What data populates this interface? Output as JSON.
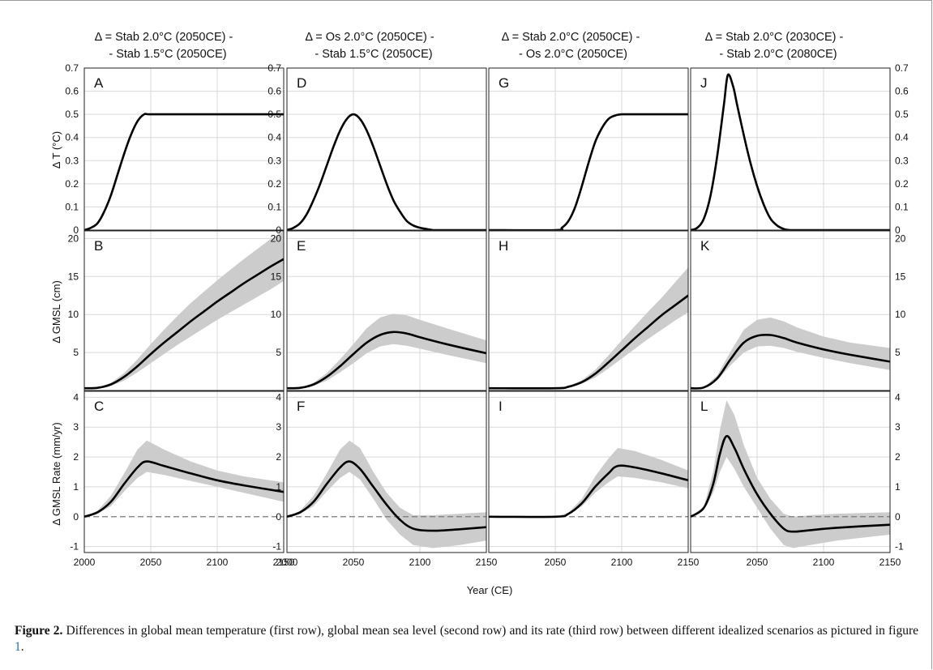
{
  "figure": {
    "x_axis_label": "Year (CE)",
    "row_labels": [
      "Δ T (°C)",
      "Δ GMSL (cm)",
      "Δ GMSL Rate (mm/yr)"
    ],
    "columns": [
      {
        "title_line1": "Δ = Stab 2.0°C (2050CE) -",
        "title_line2": "- Stab 1.5°C (2050CE)"
      },
      {
        "title_line1": "Δ = Os 2.0°C (2050CE) -",
        "title_line2": "- Stab 1.5°C (2050CE)"
      },
      {
        "title_line1": "Δ = Stab 2.0°C (2050CE) -",
        "title_line2": "- Os 2.0°C (2050CE)"
      },
      {
        "title_line1": "Δ = Stab 2.0°C (2030CE) -",
        "title_line2": "- Stab 2.0°C (2080CE)"
      }
    ],
    "colors": {
      "line": "#000000",
      "band": "#cccccc",
      "grid": "#d9d9d9",
      "zero_line": "#7a7a7a",
      "caption_link": "#1f6fb0"
    }
  },
  "caption": {
    "label": "Figure 2.",
    "text": " Differences in global mean temperature (first row), global mean sea level (second row) and its rate (third row) between different idealized scenarios as pictured in figure ",
    "link": "1",
    "end": "."
  },
  "chart_data": [
    {
      "panel": "A",
      "type": "line",
      "xlim": [
        2000,
        2150
      ],
      "ylim": [
        0,
        0.7
      ],
      "xticks": [
        "2000",
        "2050",
        "2100",
        "2150"
      ],
      "yticks": [
        "0",
        "0.1",
        "0.2",
        "0.3",
        "0.4",
        "0.5",
        "0.6",
        "0.7"
      ],
      "grid": true,
      "x": [
        2000,
        2005,
        2010,
        2015,
        2020,
        2025,
        2030,
        2035,
        2040,
        2045,
        2050,
        2075,
        2100,
        2125,
        2150
      ],
      "y": [
        0,
        0.01,
        0.03,
        0.08,
        0.15,
        0.24,
        0.33,
        0.41,
        0.47,
        0.5,
        0.5,
        0.5,
        0.5,
        0.5,
        0.5
      ]
    },
    {
      "panel": "B",
      "type": "area",
      "xlim": [
        2000,
        2150
      ],
      "ylim": [
        0,
        21
      ],
      "xticks": [
        "2000",
        "2050",
        "2100",
        "2150"
      ],
      "yticks": [
        "5",
        "10",
        "15",
        "20"
      ],
      "grid": true,
      "x": [
        2000,
        2010,
        2020,
        2030,
        2040,
        2050,
        2060,
        2070,
        2080,
        2090,
        2100,
        2110,
        2120,
        2130,
        2140,
        2150
      ],
      "y": [
        0.3,
        0.35,
        0.8,
        1.8,
        3.2,
        4.8,
        6.3,
        7.7,
        9.1,
        10.4,
        11.7,
        12.9,
        14.1,
        15.2,
        16.3,
        17.3
      ],
      "lower": [
        0.3,
        0.33,
        0.6,
        1.3,
        2.4,
        3.6,
        4.8,
        6.0,
        7.1,
        8.2,
        9.3,
        10.3,
        11.3,
        12.3,
        13.3,
        14.4
      ],
      "upper": [
        0.3,
        0.38,
        1.0,
        2.3,
        4.1,
        6.1,
        8.0,
        9.8,
        11.5,
        13.0,
        14.5,
        15.9,
        17.3,
        18.6,
        19.9,
        21.0
      ]
    },
    {
      "panel": "C",
      "type": "area",
      "xlim": [
        2000,
        2150
      ],
      "ylim": [
        -1.2,
        4.2
      ],
      "xticks": [
        "2000",
        "2050",
        "2100",
        "2150"
      ],
      "yticks": [
        "-1",
        "0",
        "1",
        "2",
        "3",
        "4"
      ],
      "grid": true,
      "zero_line": true,
      "x": [
        2000,
        2010,
        2020,
        2030,
        2040,
        2047,
        2060,
        2080,
        2100,
        2120,
        2150
      ],
      "y": [
        0,
        0.15,
        0.5,
        1.1,
        1.65,
        1.85,
        1.7,
        1.45,
        1.22,
        1.05,
        0.83
      ],
      "lower": [
        0,
        0.1,
        0.35,
        0.85,
        1.3,
        1.5,
        1.4,
        1.2,
        1.0,
        0.8,
        0.5
      ],
      "upper": [
        0,
        0.2,
        0.7,
        1.45,
        2.25,
        2.55,
        2.25,
        1.85,
        1.55,
        1.35,
        1.15
      ]
    },
    {
      "panel": "D",
      "type": "line",
      "xlim": [
        2000,
        2150
      ],
      "ylim": [
        0,
        0.7
      ],
      "xticks": [
        "2000",
        "2050",
        "2100",
        "2150"
      ],
      "yticks": [
        "0",
        "0.1",
        "0.2",
        "0.3",
        "0.4",
        "0.5",
        "0.6",
        "0.7"
      ],
      "grid": true,
      "x": [
        2000,
        2005,
        2010,
        2015,
        2020,
        2025,
        2030,
        2035,
        2040,
        2045,
        2050,
        2055,
        2060,
        2065,
        2070,
        2075,
        2080,
        2085,
        2090,
        2095,
        2100,
        2105,
        2110,
        2120,
        2150
      ],
      "y": [
        0,
        0.01,
        0.03,
        0.07,
        0.13,
        0.2,
        0.28,
        0.36,
        0.43,
        0.48,
        0.5,
        0.48,
        0.43,
        0.36,
        0.28,
        0.2,
        0.13,
        0.08,
        0.04,
        0.02,
        0.01,
        0.005,
        0,
        0,
        0
      ]
    },
    {
      "panel": "E",
      "type": "area",
      "xlim": [
        2000,
        2150
      ],
      "ylim": [
        0,
        21
      ],
      "xticks": [
        "2000",
        "2050",
        "2100",
        "2150"
      ],
      "yticks": [
        "5",
        "10",
        "15",
        "20"
      ],
      "grid": true,
      "x": [
        2000,
        2010,
        2020,
        2030,
        2040,
        2050,
        2060,
        2070,
        2080,
        2090,
        2100,
        2120,
        2150
      ],
      "y": [
        0.3,
        0.35,
        0.8,
        1.8,
        3.2,
        4.8,
        6.3,
        7.3,
        7.7,
        7.5,
        7.0,
        6.1,
        4.9
      ],
      "lower": [
        0.3,
        0.33,
        0.6,
        1.3,
        2.4,
        3.6,
        4.9,
        5.8,
        6.1,
        5.9,
        5.5,
        4.7,
        3.6
      ],
      "upper": [
        0.3,
        0.38,
        1.0,
        2.3,
        4.1,
        6.1,
        8.2,
        9.6,
        10.1,
        9.9,
        9.3,
        8.2,
        6.6
      ]
    },
    {
      "panel": "F",
      "type": "area",
      "xlim": [
        2000,
        2150
      ],
      "ylim": [
        -1.2,
        4.2
      ],
      "xticks": [
        "2000",
        "2050",
        "2100",
        "2150"
      ],
      "yticks": [
        "-1",
        "0",
        "1",
        "2",
        "3",
        "4"
      ],
      "grid": true,
      "zero_line": true,
      "x": [
        2000,
        2010,
        2020,
        2030,
        2040,
        2047,
        2055,
        2065,
        2075,
        2085,
        2095,
        2110,
        2130,
        2150
      ],
      "y": [
        0,
        0.15,
        0.5,
        1.1,
        1.65,
        1.85,
        1.6,
        1.0,
        0.4,
        -0.1,
        -0.4,
        -0.47,
        -0.42,
        -0.35
      ],
      "lower": [
        0,
        0.1,
        0.35,
        0.85,
        1.3,
        1.5,
        1.25,
        0.6,
        -0.1,
        -0.6,
        -0.95,
        -1.05,
        -0.95,
        -0.8
      ],
      "upper": [
        0,
        0.2,
        0.7,
        1.45,
        2.25,
        2.55,
        2.3,
        1.5,
        0.8,
        0.3,
        0.05,
        0.05,
        0.1,
        0.15
      ]
    },
    {
      "panel": "G",
      "type": "line",
      "xlim": [
        2000,
        2150
      ],
      "ylim": [
        0,
        0.7
      ],
      "xticks": [
        "2050",
        "2100",
        "2150"
      ],
      "yticks": [],
      "grid": true,
      "x": [
        2000,
        2050,
        2055,
        2060,
        2065,
        2070,
        2075,
        2080,
        2085,
        2090,
        2095,
        2100,
        2110,
        2150
      ],
      "y": [
        0,
        0,
        0.01,
        0.04,
        0.1,
        0.19,
        0.29,
        0.38,
        0.44,
        0.48,
        0.495,
        0.5,
        0.5,
        0.5
      ]
    },
    {
      "panel": "H",
      "type": "area",
      "xlim": [
        2000,
        2150
      ],
      "ylim": [
        0,
        21
      ],
      "xticks": [
        "2050",
        "2100",
        "2150"
      ],
      "yticks": [],
      "grid": true,
      "x": [
        2000,
        2050,
        2060,
        2070,
        2080,
        2090,
        2100,
        2110,
        2120,
        2130,
        2140,
        2150
      ],
      "y": [
        0.3,
        0.3,
        0.5,
        1.1,
        2.2,
        3.7,
        5.3,
        6.9,
        8.4,
        9.9,
        11.2,
        12.5
      ],
      "lower": [
        0.3,
        0.3,
        0.45,
        0.9,
        1.7,
        2.9,
        4.2,
        5.5,
        6.8,
        8.0,
        9.2,
        10.3
      ],
      "upper": [
        0.3,
        0.3,
        0.55,
        1.35,
        2.7,
        4.6,
        6.6,
        8.5,
        10.4,
        12.2,
        14.2,
        16.2
      ]
    },
    {
      "panel": "I",
      "type": "area",
      "xlim": [
        2000,
        2150
      ],
      "ylim": [
        -1.2,
        4.2
      ],
      "xticks": [
        "2050",
        "2100",
        "2150"
      ],
      "yticks": [],
      "grid": true,
      "zero_line": true,
      "x": [
        2000,
        2050,
        2060,
        2070,
        2080,
        2090,
        2097,
        2110,
        2130,
        2150
      ],
      "y": [
        0,
        0,
        0.1,
        0.45,
        1.0,
        1.45,
        1.7,
        1.65,
        1.45,
        1.22
      ],
      "lower": [
        0,
        0,
        0.08,
        0.35,
        0.8,
        1.15,
        1.35,
        1.3,
        1.15,
        0.95
      ],
      "upper": [
        0,
        0,
        0.14,
        0.6,
        1.35,
        1.95,
        2.3,
        2.2,
        1.9,
        1.55
      ]
    },
    {
      "panel": "J",
      "type": "line",
      "xlim": [
        2000,
        2150
      ],
      "ylim": [
        0,
        0.7
      ],
      "xticks": [
        "2050",
        "2100",
        "2150"
      ],
      "yticks": [
        "0",
        "0.1",
        "0.2",
        "0.3",
        "0.4",
        "0.5",
        "0.6",
        "0.7"
      ],
      "grid": true,
      "x": [
        2000,
        2005,
        2010,
        2015,
        2020,
        2025,
        2028,
        2032,
        2035,
        2040,
        2045,
        2050,
        2055,
        2060,
        2065,
        2070,
        2075,
        2080,
        2150
      ],
      "y": [
        0,
        0.01,
        0.05,
        0.15,
        0.32,
        0.54,
        0.67,
        0.62,
        0.54,
        0.41,
        0.29,
        0.19,
        0.11,
        0.05,
        0.02,
        0.005,
        0,
        0,
        0
      ]
    },
    {
      "panel": "K",
      "type": "area",
      "xlim": [
        2000,
        2150
      ],
      "ylim": [
        0,
        21
      ],
      "xticks": [
        "2050",
        "2100",
        "2150"
      ],
      "yticks": [
        "5",
        "10",
        "15",
        "20"
      ],
      "grid": true,
      "x": [
        2000,
        2010,
        2020,
        2030,
        2040,
        2050,
        2060,
        2070,
        2080,
        2100,
        2120,
        2150
      ],
      "y": [
        0.3,
        0.4,
        1.6,
        4.1,
        6.3,
        7.2,
        7.3,
        6.9,
        6.3,
        5.4,
        4.7,
        3.8
      ],
      "lower": [
        0.3,
        0.38,
        1.3,
        3.3,
        5.0,
        5.8,
        5.9,
        5.6,
        5.1,
        4.3,
        3.6,
        2.7
      ],
      "upper": [
        0.3,
        0.42,
        2.0,
        5.1,
        8.0,
        9.3,
        9.6,
        9.1,
        8.3,
        7.1,
        6.3,
        5.6
      ]
    },
    {
      "panel": "L",
      "type": "area",
      "xlim": [
        2000,
        2150
      ],
      "ylim": [
        -1.2,
        4.2
      ],
      "xticks": [
        "2050",
        "2100",
        "2150"
      ],
      "yticks": [
        "-1",
        "0",
        "1",
        "2",
        "3",
        "4"
      ],
      "grid": true,
      "zero_line": true,
      "x": [
        2000,
        2010,
        2017,
        2022,
        2027,
        2033,
        2040,
        2050,
        2060,
        2070,
        2077,
        2090,
        2110,
        2150
      ],
      "y": [
        0,
        0.3,
        1.1,
        2.1,
        2.7,
        2.3,
        1.6,
        0.75,
        0.1,
        -0.4,
        -0.5,
        -0.45,
        -0.37,
        -0.27
      ],
      "lower": [
        0,
        0.25,
        0.8,
        1.5,
        2.0,
        1.6,
        1.0,
        0.3,
        -0.4,
        -0.95,
        -1.05,
        -0.95,
        -0.8,
        -0.6
      ],
      "upper": [
        0,
        0.35,
        1.5,
        2.9,
        3.9,
        3.4,
        2.4,
        1.3,
        0.6,
        0.1,
        0.0,
        0.05,
        0.1,
        0.15
      ]
    }
  ]
}
